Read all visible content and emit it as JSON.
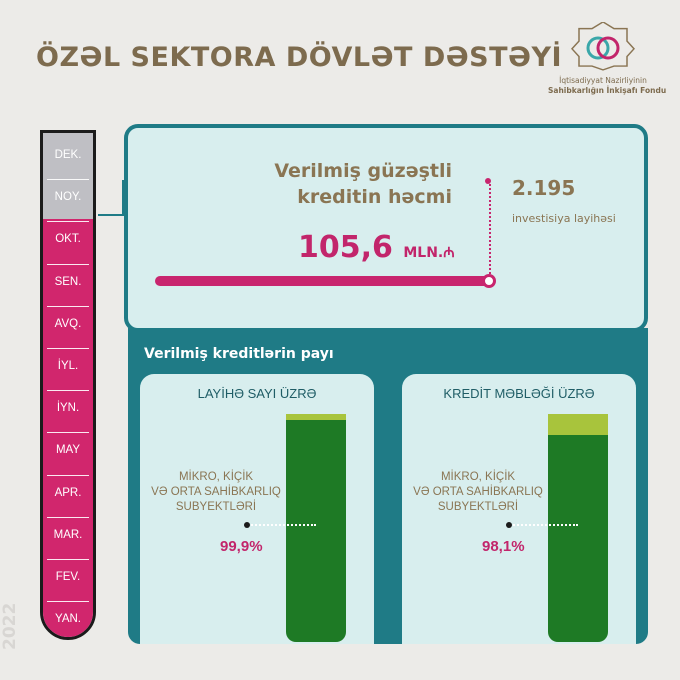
{
  "title": "ÖZƏL SEKTORA DÖVLƏT DƏSTƏYİ",
  "logo": {
    "icon": "fund-emblem-icon",
    "line1": "İqtisadiyyat Nazirliyinin",
    "line2": "Sahibkarlığın İnkişafı Fondu"
  },
  "timeline": {
    "year": "2022",
    "months": [
      "DEK.",
      "NOY.",
      "OKT.",
      "SEN.",
      "AVQ.",
      "İYL.",
      "İYN.",
      "MAY",
      "APR.",
      "MAR.",
      "FEV.",
      "YAN."
    ],
    "current_month_index": 1,
    "colors": {
      "filled": "#d1266d",
      "empty": "#bfbfc4"
    }
  },
  "loan_volume": {
    "title_line1": "Verilmiş güzəştli",
    "title_line2": "kreditin həcmi",
    "value": "105,6",
    "unit": "MLN.₼"
  },
  "investment": {
    "value": "2.195",
    "label": "investisiya layihəsi"
  },
  "shares": {
    "title": "Verilmiş kreditlərin payı",
    "items": [
      {
        "title": "LAYİHƏ SAYI ÜZRƏ",
        "label_lines": [
          "MİKRO, KİÇİK",
          "VƏ ORTA SAHİBKARLIQ",
          "SUBYEKTLƏRİ"
        ],
        "value_text": "99,9%",
        "value": 99.9
      },
      {
        "title": "KREDİT MƏBLƏĞİ ÜZRƏ",
        "label_lines": [
          "MİKRO, KİÇİK",
          "VƏ ORTA SAHİBKARLIQ",
          "SUBYEKTLƏRİ"
        ],
        "value_text": "98,1%",
        "value": 98.1
      }
    ],
    "colors": {
      "filled": "#1e7a25",
      "remainder": "#a8c43c"
    }
  },
  "colors": {
    "accent": "#c2256b",
    "teal": "#1f7b86",
    "brown": "#8a7553"
  }
}
